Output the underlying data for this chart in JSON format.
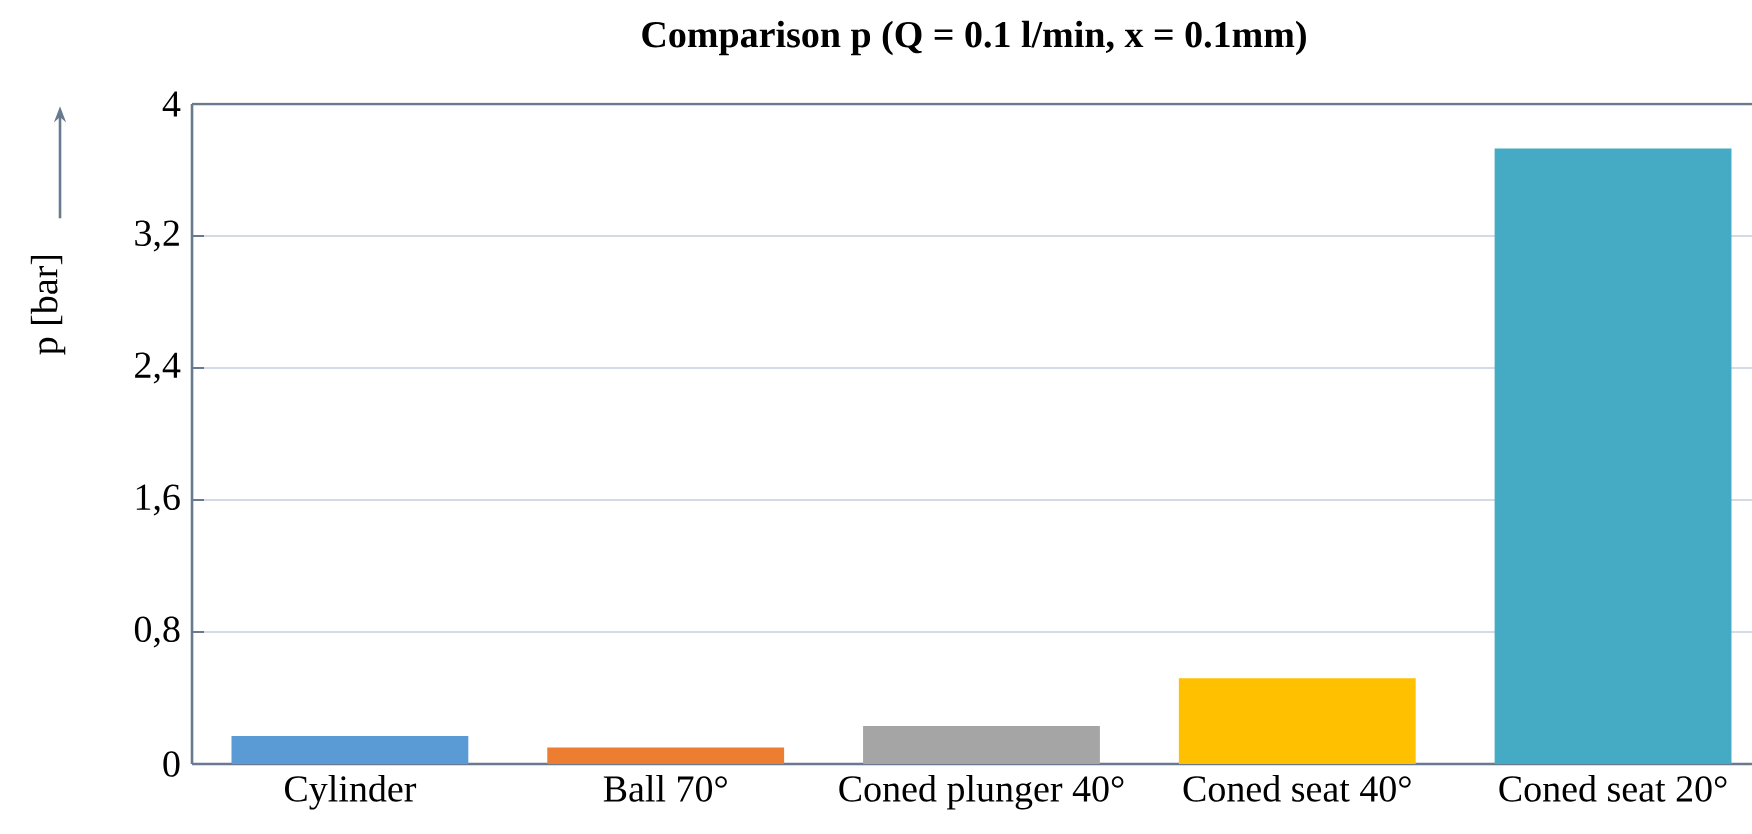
{
  "chart_data": {
    "type": "bar",
    "title": "Comparison p (Q = 0.1 l/min, x = 0.1mm)",
    "ylabel": "p [bar]",
    "categories": [
      "Cylinder",
      "Ball 70°",
      "Coned plunger 40°",
      "Coned seat 40°",
      "Coned seat 20°"
    ],
    "values": [
      0.17,
      0.1,
      0.23,
      0.52,
      3.73
    ],
    "colors": [
      "#5b9bd5",
      "#ed7d31",
      "#a5a5a5",
      "#ffc000",
      "#45abc5"
    ],
    "ylim": [
      0,
      4
    ],
    "yticks": [
      0,
      {
        "value": 0.8,
        "label": "0,8"
      },
      {
        "value": 1.6,
        "label": "1,6"
      },
      {
        "value": 2.4,
        "label": "2,4"
      },
      {
        "value": 3.2,
        "label": "3,2"
      },
      4
    ],
    "grid": "y"
  }
}
